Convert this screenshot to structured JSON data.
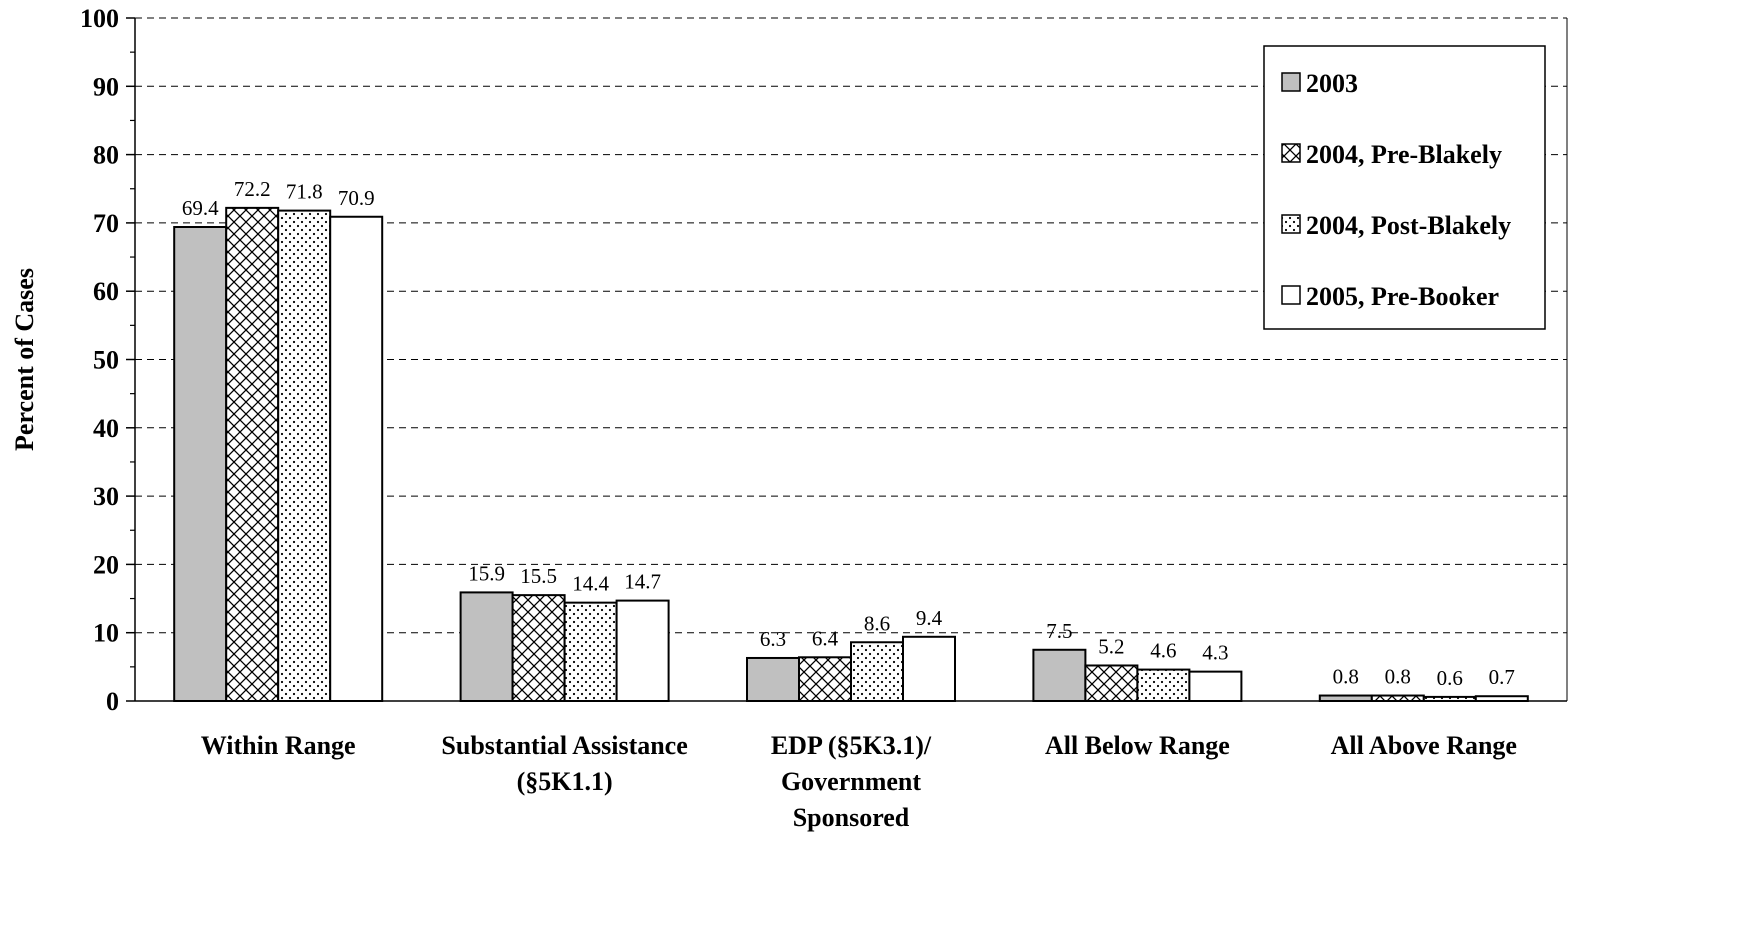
{
  "chart_data": {
    "type": "bar",
    "title": "",
    "xlabel": "",
    "ylabel": "Percent of Cases",
    "ylim": [
      0,
      100
    ],
    "yticks": [
      "0",
      "10",
      "20",
      "30",
      "40",
      "50",
      "60",
      "70",
      "80",
      "90",
      "100"
    ],
    "grid": "horizontal dashed",
    "legend_position": "top-right",
    "categories": [
      [
        "Within Range"
      ],
      [
        "Substantial Assistance",
        "(§5K1.1)"
      ],
      [
        "EDP (§5K3.1)/",
        "Government",
        "Sponsored"
      ],
      [
        "All Below Range"
      ],
      [
        "All Above Range"
      ]
    ],
    "series": [
      {
        "name": "2003",
        "pattern": "solid-gray",
        "color": "#c0c0c0",
        "values": [
          69.4,
          15.9,
          6.3,
          7.5,
          0.8
        ]
      },
      {
        "name": "2004, Pre-Blakely",
        "pattern": "crosshatch",
        "color": "#ffffff",
        "values": [
          72.2,
          15.5,
          6.4,
          5.2,
          0.8
        ]
      },
      {
        "name": "2004, Post-Blakely",
        "pattern": "dots",
        "color": "#ffffff",
        "values": [
          71.8,
          14.4,
          8.6,
          4.6,
          0.6
        ]
      },
      {
        "name": "2005, Pre-Booker",
        "pattern": "white",
        "color": "#ffffff",
        "values": [
          70.9,
          14.7,
          9.4,
          4.3,
          0.7
        ]
      }
    ]
  }
}
